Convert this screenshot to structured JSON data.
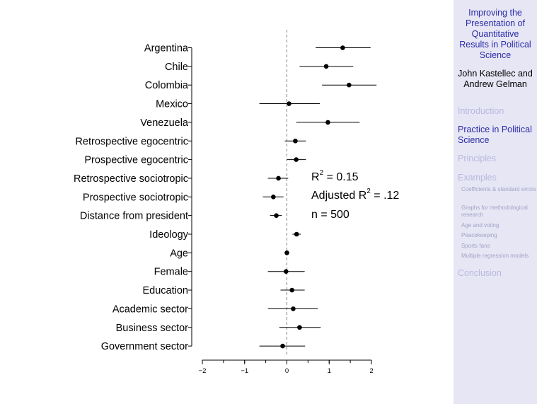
{
  "chart_data": {
    "type": "scatter",
    "variant": "coefficient-plot",
    "categories": [
      "Argentina",
      "Chile",
      "Colombia",
      "Mexico",
      "Venezuela",
      "Retrospective egocentric",
      "Prospective egocentric",
      "Retrospective sociotropic",
      "Prospective sociotropic",
      "Distance from president",
      "Ideology",
      "Age",
      "Female",
      "Education",
      "Academic sector",
      "Business sector",
      "Government sector"
    ],
    "estimates": [
      1.32,
      0.93,
      1.47,
      0.05,
      0.97,
      0.2,
      0.22,
      -0.2,
      -0.32,
      -0.25,
      0.23,
      0.0,
      -0.02,
      0.12,
      0.15,
      0.3,
      -0.1
    ],
    "lower": [
      0.68,
      0.3,
      0.83,
      -0.65,
      0.22,
      -0.05,
      0.0,
      -0.45,
      -0.57,
      -0.4,
      0.13,
      -0.02,
      -0.45,
      -0.15,
      -0.45,
      -0.18,
      -0.65
    ],
    "upper": [
      1.98,
      1.57,
      2.12,
      0.78,
      1.72,
      0.45,
      0.45,
      0.03,
      -0.08,
      -0.12,
      0.33,
      0.02,
      0.42,
      0.42,
      0.73,
      0.8,
      0.43
    ],
    "xlim": [
      -2,
      2
    ],
    "xticks": [
      "−2",
      "−1",
      "0",
      "1",
      "2"
    ],
    "xtick_values": [
      -2,
      -1,
      0,
      1,
      2
    ],
    "reference_line": 0,
    "title": "",
    "xlabel": "",
    "ylabel": "",
    "annotations": {
      "r2_prefix": "R",
      "r2_sup": "2",
      "r2_rest": " = 0.15",
      "adj_prefix": "Adjusted R",
      "adj_sup": "2",
      "adj_rest": " = .12",
      "n": "n = 500"
    },
    "colors": {
      "point": "#000000",
      "interval": "#000000",
      "reference": "#808080"
    }
  },
  "sidebar": {
    "title": "Improving the Presentation of Quantitative Results in Political Science",
    "authors": "John Kastellec and Andrew Gelman",
    "sections": [
      {
        "label": "Introduction",
        "active": false
      },
      {
        "label": "Practice in Political Science",
        "active": true
      },
      {
        "label": "Principles",
        "active": false
      },
      {
        "label": "Examples",
        "active": false
      }
    ],
    "subsections": [
      "Coefficients & standard errors",
      "Graphs for methodological research",
      "Age and voting",
      "Peacekeeping",
      "Sports fans",
      "Multiple regression models"
    ],
    "conclusion": "Conclusion",
    "colors": {
      "background": "#e6e6f5",
      "active": "#2b2ba8",
      "inactive": "#b9b9e0"
    }
  }
}
